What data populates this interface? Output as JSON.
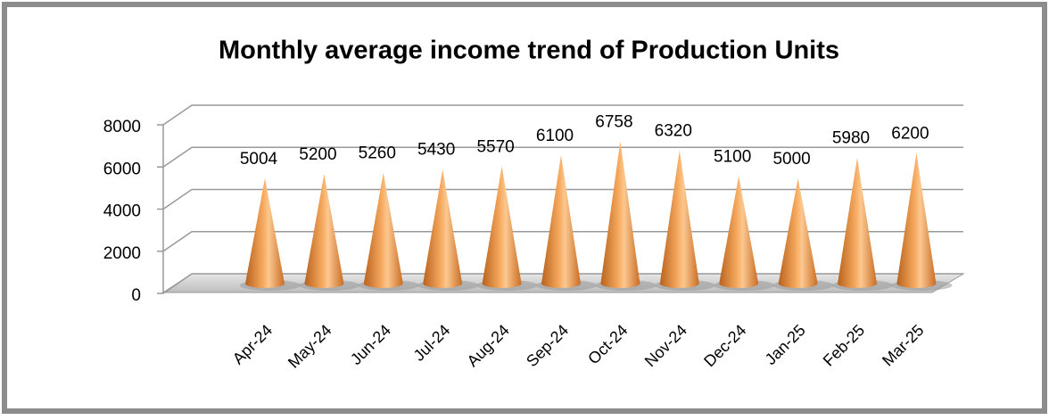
{
  "chart_data": {
    "type": "cone",
    "title": "Monthly average income trend of Production Units",
    "categories": [
      "Apr-24",
      "May-24",
      "Jun-24",
      "Jul-24",
      "Aug-24",
      "Sep-24",
      "Oct-24",
      "Nov-24",
      "Dec-24",
      "Jan-25",
      "Feb-25",
      "Mar-25"
    ],
    "values": [
      5004,
      5200,
      5260,
      5430,
      5570,
      6100,
      6758,
      6320,
      5100,
      5000,
      5980,
      6200
    ],
    "color": "#f0a050",
    "ylim": [
      0,
      8000
    ],
    "yticks": [
      0,
      2000,
      4000,
      6000,
      8000
    ],
    "grid": true
  }
}
